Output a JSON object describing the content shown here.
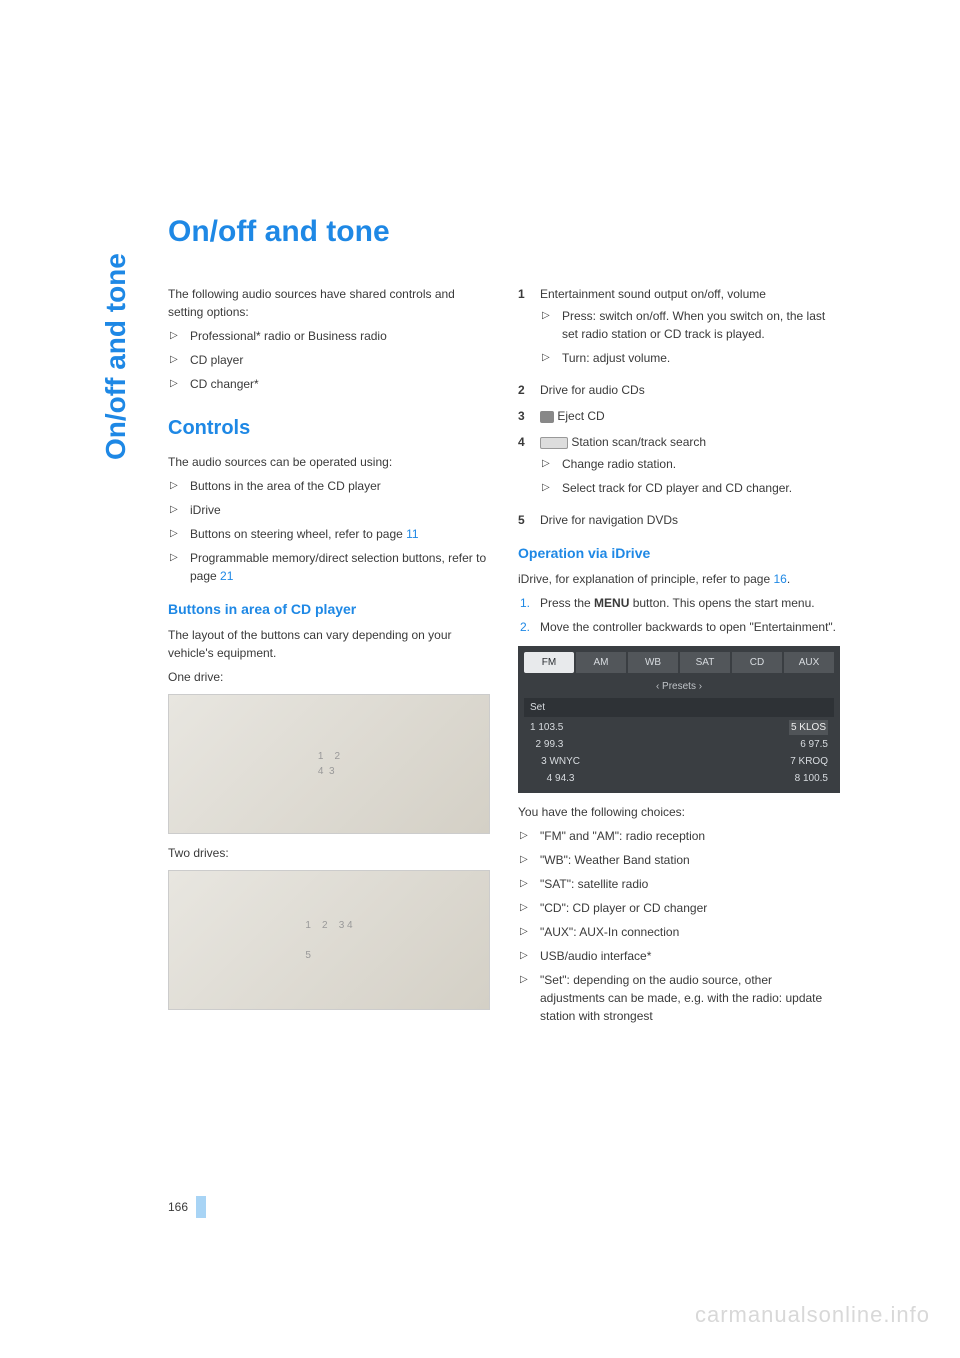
{
  "sidebar": {
    "label": "On/off and tone"
  },
  "title": "On/off and tone",
  "left": {
    "intro": "The following audio sources have shared controls and setting options:",
    "sources": [
      "Professional* radio or Business radio",
      "CD player",
      "CD changer*"
    ],
    "controls_heading": "Controls",
    "controls_intro": "The audio sources can be operated using:",
    "controls_items": [
      {
        "text": "Buttons in the area of the CD player"
      },
      {
        "text": "iDrive"
      },
      {
        "text": "Buttons on steering wheel, refer to page ",
        "link": "11"
      },
      {
        "text": "Programmable memory/direct selection buttons, refer to page ",
        "link": "21"
      }
    ],
    "buttons_heading": "Buttons in area of CD player",
    "buttons_intro": "The layout of the buttons can vary depending on your vehicle's equipment.",
    "one_drive_label": "One drive:",
    "two_drives_label": "Two drives:"
  },
  "right": {
    "numbered": [
      {
        "n": "1",
        "text": "Entertainment sound output on/off, volume",
        "sub": [
          "Press: switch on/off. When you switch on, the last set radio station or CD track is played.",
          "Turn: adjust volume."
        ]
      },
      {
        "n": "2",
        "text": "Drive for audio CDs"
      },
      {
        "n": "3",
        "icon": "eject",
        "text": "Eject CD"
      },
      {
        "n": "4",
        "icon": "scan",
        "text": "Station scan/track search",
        "sub": [
          "Change radio station.",
          "Select track for CD player and CD changer."
        ]
      },
      {
        "n": "5",
        "text": "Drive for navigation DVDs"
      }
    ],
    "idrive_heading": "Operation via iDrive",
    "idrive_intro_a": "iDrive, for explanation of principle, refer to page ",
    "idrive_intro_link": "16",
    "idrive_intro_b": ".",
    "idrive_steps": [
      {
        "num": "1.",
        "text_a": "Press the ",
        "bold": "MENU",
        "text_b": " button. This opens the start menu."
      },
      {
        "num": "2.",
        "text": "Move the controller backwards to open \"Entertainment\"."
      }
    ],
    "screenshot": {
      "tabs": [
        "FM",
        "AM",
        "WB",
        "SAT",
        "CD",
        "AUX"
      ],
      "active_tab_index": 0,
      "subtitle": "‹ Presets ›",
      "set_label": "Set",
      "rows": [
        {
          "l": "1 103.5",
          "r": "5 KLOS"
        },
        {
          "l": "  2 99.3",
          "r": "6 97.5"
        },
        {
          "l": "    3 WNYC",
          "r": "7 KROQ"
        },
        {
          "l": "      4 94.3",
          "r": "8 100.5"
        }
      ]
    },
    "choices_intro": "You have the following choices:",
    "choices": [
      "\"FM\" and \"AM\": radio reception",
      "\"WB\": Weather Band station",
      "\"SAT\": satellite radio",
      "\"CD\": CD player or CD changer",
      "\"AUX\": AUX-In connection",
      "USB/audio interface*",
      "\"Set\": depending on the audio source, other adjustments can be made, e.g. with the radio: update station with strongest"
    ]
  },
  "pagenum": "166",
  "watermark": "carmanualsonline.info",
  "colors": {
    "accent": "#1e88e5",
    "text": "#3a3a3a",
    "screenshot_bg": "#3a3e42"
  }
}
